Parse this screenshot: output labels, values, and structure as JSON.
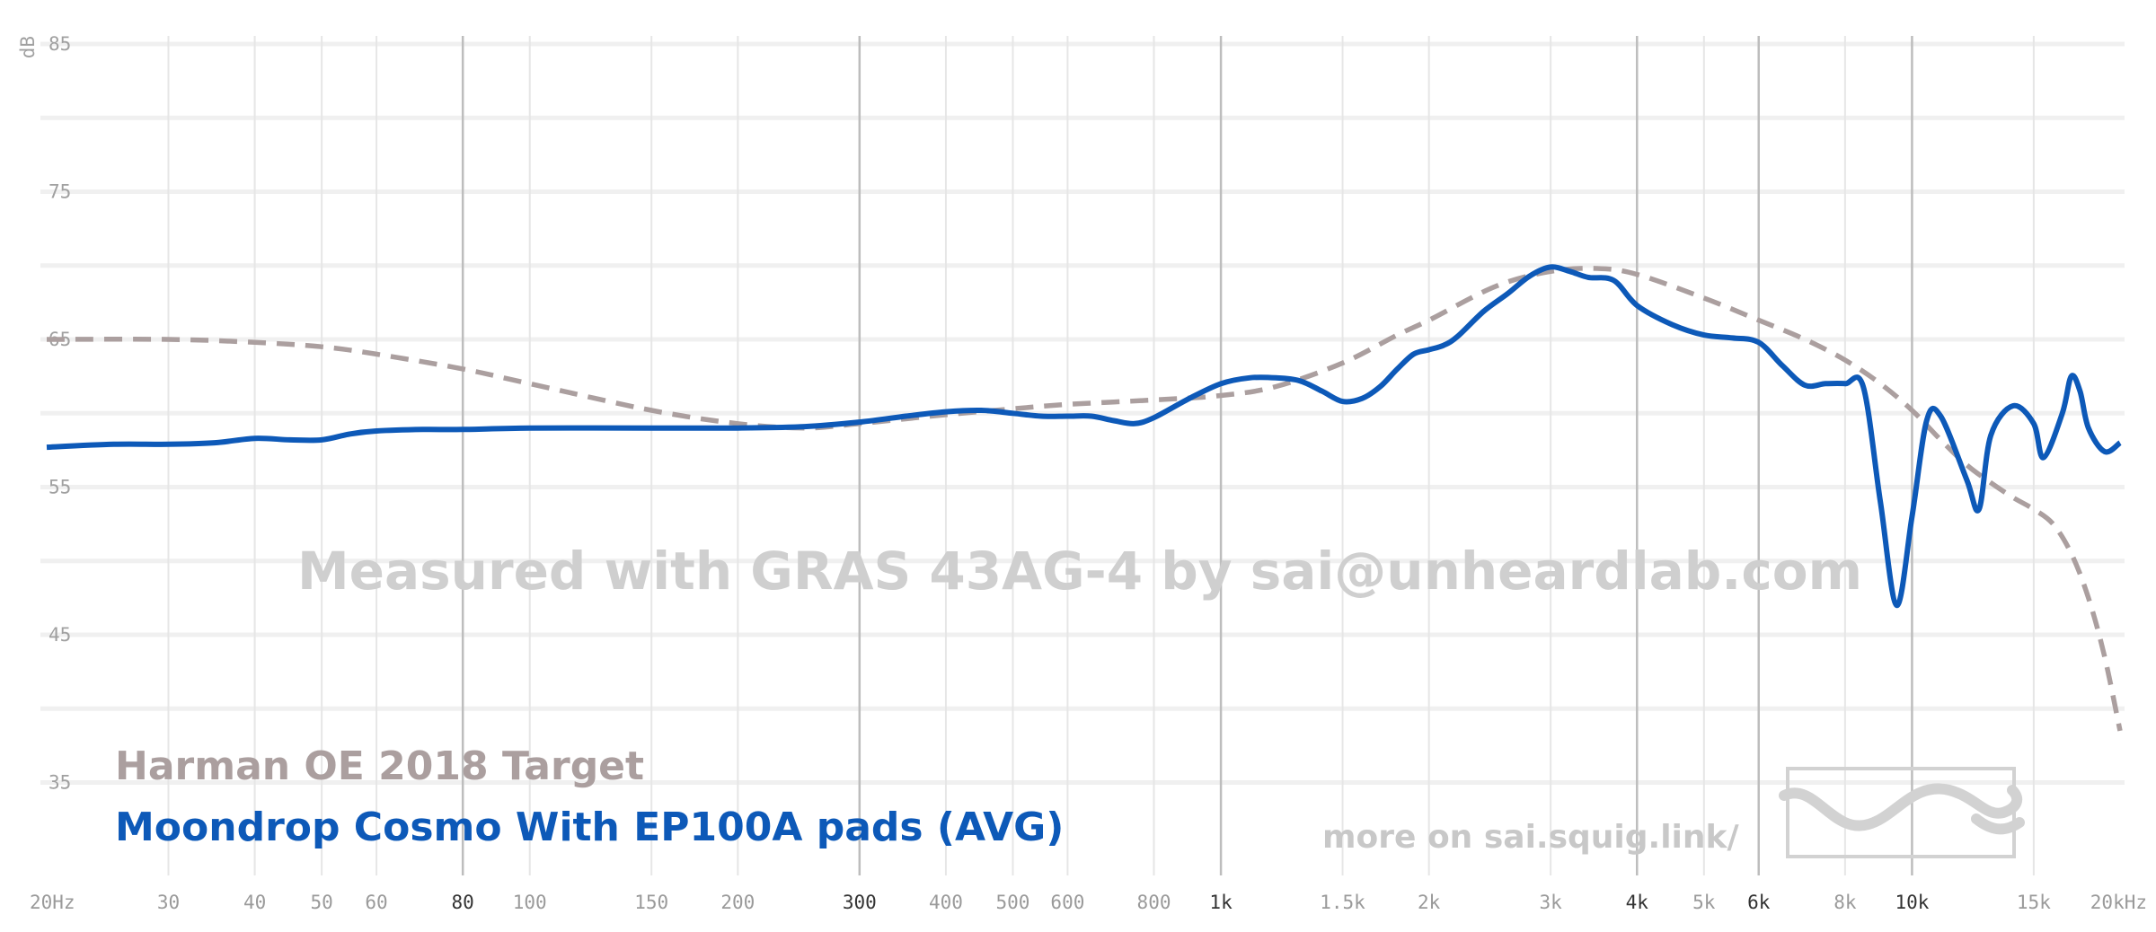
{
  "chart_data": {
    "type": "line",
    "xscale": "log",
    "xlim": [
      20,
      20000
    ],
    "ylim": [
      30,
      90
    ],
    "ylabel": "dB",
    "grid": true,
    "y_ticks": [
      {
        "value": 85,
        "label": "85"
      },
      {
        "value": 75,
        "label": "75"
      },
      {
        "value": 65,
        "label": "65"
      },
      {
        "value": 55,
        "label": "55"
      },
      {
        "value": 45,
        "label": "45"
      },
      {
        "value": 35,
        "label": "35"
      }
    ],
    "x_ticks": [
      {
        "value": 20,
        "label": "20Hz",
        "major": false
      },
      {
        "value": 30,
        "label": "30",
        "major": false
      },
      {
        "value": 40,
        "label": "40",
        "major": false
      },
      {
        "value": 50,
        "label": "50",
        "major": false
      },
      {
        "value": 60,
        "label": "60",
        "major": false
      },
      {
        "value": 80,
        "label": "80",
        "major": true
      },
      {
        "value": 100,
        "label": "100",
        "major": false
      },
      {
        "value": 150,
        "label": "150",
        "major": false
      },
      {
        "value": 200,
        "label": "200",
        "major": false
      },
      {
        "value": 300,
        "label": "300",
        "major": true
      },
      {
        "value": 400,
        "label": "400",
        "major": false
      },
      {
        "value": 500,
        "label": "500",
        "major": false
      },
      {
        "value": 600,
        "label": "600",
        "major": false
      },
      {
        "value": 800,
        "label": "800",
        "major": false
      },
      {
        "value": 1000,
        "label": "1k",
        "major": true
      },
      {
        "value": 1500,
        "label": "1.5k",
        "major": false
      },
      {
        "value": 2000,
        "label": "2k",
        "major": false
      },
      {
        "value": 3000,
        "label": "3k",
        "major": false
      },
      {
        "value": 4000,
        "label": "4k",
        "major": true
      },
      {
        "value": 5000,
        "label": "5k",
        "major": false
      },
      {
        "value": 6000,
        "label": "6k",
        "major": true
      },
      {
        "value": 8000,
        "label": "8k",
        "major": false
      },
      {
        "value": 10000,
        "label": "10k",
        "major": true
      },
      {
        "value": 15000,
        "label": "15k",
        "major": false
      },
      {
        "value": 20000,
        "label": "20kHz",
        "major": false
      }
    ],
    "series": [
      {
        "name": "Harman OE 2018 Target",
        "color": "#ab9f9f",
        "dashed": true,
        "points": [
          [
            20,
            65.0
          ],
          [
            30,
            65.0
          ],
          [
            40,
            64.8
          ],
          [
            50,
            64.5
          ],
          [
            60,
            64.0
          ],
          [
            80,
            63.0
          ],
          [
            100,
            62.0
          ],
          [
            150,
            60.2
          ],
          [
            200,
            59.3
          ],
          [
            250,
            59.0
          ],
          [
            300,
            59.3
          ],
          [
            400,
            59.9
          ],
          [
            500,
            60.3
          ],
          [
            600,
            60.6
          ],
          [
            800,
            60.9
          ],
          [
            1000,
            61.2
          ],
          [
            1200,
            61.8
          ],
          [
            1500,
            63.4
          ],
          [
            1800,
            65.3
          ],
          [
            2000,
            66.3
          ],
          [
            2500,
            68.6
          ],
          [
            3000,
            69.6
          ],
          [
            3500,
            69.8
          ],
          [
            4000,
            69.4
          ],
          [
            5000,
            67.8
          ],
          [
            6000,
            66.3
          ],
          [
            7000,
            65.0
          ],
          [
            8000,
            63.6
          ],
          [
            9000,
            62.0
          ],
          [
            10000,
            60.2
          ],
          [
            11000,
            58.2
          ],
          [
            12000,
            56.5
          ],
          [
            13000,
            55.3
          ],
          [
            14000,
            54.3
          ],
          [
            15000,
            53.5
          ],
          [
            16000,
            52.5
          ],
          [
            17000,
            50.5
          ],
          [
            18000,
            47.5
          ],
          [
            19000,
            43.5
          ],
          [
            20000,
            38.5
          ]
        ]
      },
      {
        "name": "Moondrop Cosmo With EP100A pads (AVG)",
        "color": "#0d59b8",
        "dashed": false,
        "points": [
          [
            20,
            57.7
          ],
          [
            25,
            57.9
          ],
          [
            30,
            57.9
          ],
          [
            35,
            58.0
          ],
          [
            40,
            58.3
          ],
          [
            45,
            58.2
          ],
          [
            50,
            58.2
          ],
          [
            55,
            58.6
          ],
          [
            60,
            58.8
          ],
          [
            70,
            58.9
          ],
          [
            80,
            58.9
          ],
          [
            100,
            59.0
          ],
          [
            150,
            59.0
          ],
          [
            200,
            59.0
          ],
          [
            250,
            59.1
          ],
          [
            300,
            59.4
          ],
          [
            350,
            59.8
          ],
          [
            400,
            60.1
          ],
          [
            450,
            60.2
          ],
          [
            500,
            60.0
          ],
          [
            550,
            59.8
          ],
          [
            600,
            59.8
          ],
          [
            650,
            59.8
          ],
          [
            700,
            59.5
          ],
          [
            750,
            59.3
          ],
          [
            800,
            59.7
          ],
          [
            900,
            61.0
          ],
          [
            1000,
            62.0
          ],
          [
            1100,
            62.4
          ],
          [
            1200,
            62.4
          ],
          [
            1300,
            62.2
          ],
          [
            1400,
            61.5
          ],
          [
            1500,
            60.8
          ],
          [
            1600,
            61.0
          ],
          [
            1700,
            61.8
          ],
          [
            1800,
            63.0
          ],
          [
            1900,
            64.0
          ],
          [
            2000,
            64.3
          ],
          [
            2100,
            64.6
          ],
          [
            2200,
            65.2
          ],
          [
            2400,
            66.9
          ],
          [
            2600,
            68.1
          ],
          [
            2800,
            69.3
          ],
          [
            3000,
            69.9
          ],
          [
            3200,
            69.6
          ],
          [
            3400,
            69.2
          ],
          [
            3700,
            69.0
          ],
          [
            4000,
            67.3
          ],
          [
            4500,
            66.0
          ],
          [
            5000,
            65.3
          ],
          [
            5500,
            65.1
          ],
          [
            6000,
            64.8
          ],
          [
            6500,
            63.2
          ],
          [
            7000,
            61.9
          ],
          [
            7500,
            62.0
          ],
          [
            8000,
            62.0
          ],
          [
            8500,
            61.8
          ],
          [
            9000,
            54.0
          ],
          [
            9500,
            47.0
          ],
          [
            10000,
            53.0
          ],
          [
            10500,
            59.5
          ],
          [
            11000,
            59.8
          ],
          [
            12000,
            55.5
          ],
          [
            12500,
            53.5
          ],
          [
            13000,
            58.5
          ],
          [
            14000,
            60.5
          ],
          [
            15000,
            59.3
          ],
          [
            15500,
            57.0
          ],
          [
            16500,
            60.0
          ],
          [
            17000,
            62.5
          ],
          [
            17500,
            61.5
          ],
          [
            18000,
            59.0
          ],
          [
            19000,
            57.4
          ],
          [
            20000,
            58.0
          ]
        ]
      }
    ],
    "legend": {
      "placement": "bottom-left",
      "entries": [
        {
          "label": "Harman OE 2018 Target",
          "color": "#ab9f9f"
        },
        {
          "label": "Moondrop Cosmo With EP100A pads (AVG)",
          "color": "#0d59b8"
        }
      ]
    },
    "annotations": {
      "watermark": "Measured with GRAS 43AG-4 by sai@unheardlab.com",
      "footer": "more on sai.squig.link/"
    }
  }
}
